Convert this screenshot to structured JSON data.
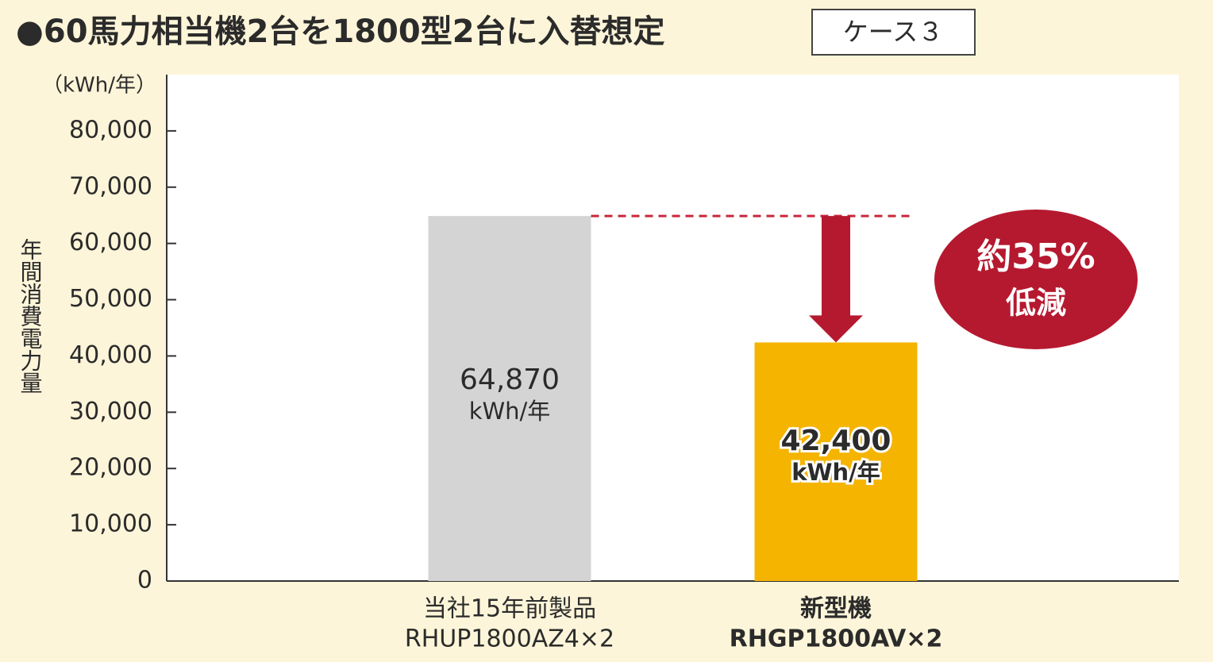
{
  "chart_data": {
    "type": "bar",
    "title": "●60馬力相当機2台を1800型2台に入替想定",
    "badge": "ケース３",
    "y_unit_label": "（kWh/年）",
    "y_label": "年間消費電力量",
    "categories": [
      [
        "当社15年前製品",
        "RHUP1800AZ4×2"
      ],
      [
        "新型機",
        "RHGP1800AV×2"
      ]
    ],
    "values": [
      64870,
      42400
    ],
    "value_labels": [
      "64,870",
      "42,400"
    ],
    "value_unit": "kWh/年",
    "colors": [
      "#d4d4d4",
      "#f4b400"
    ],
    "annotation": [
      "約35%",
      "低減"
    ],
    "ylim": [
      0,
      90000
    ],
    "yticks": [
      0,
      {
        "value": 10000,
        "label": "10,000"
      },
      {
        "value": 20000,
        "label": "20,000"
      },
      {
        "value": 30000,
        "label": "30,000"
      },
      {
        "value": 40000,
        "label": "40,000"
      },
      {
        "value": 50000,
        "label": "50,000"
      },
      {
        "value": 60000,
        "label": "60,000"
      },
      {
        "value": 70000,
        "label": "70,000"
      },
      {
        "value": 80000,
        "label": "80,000"
      }
    ]
  }
}
